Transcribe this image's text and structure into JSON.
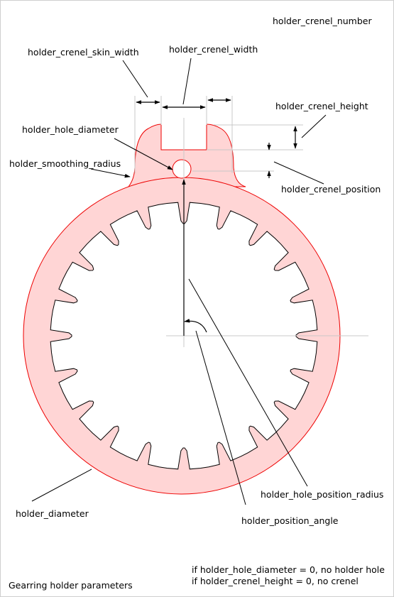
{
  "diagram": {
    "title": "Gearring holder parameters",
    "labels": {
      "holder_crenel_number": "holder_crenel_number",
      "holder_crenel_skin_width": "holder_crenel_skin_width",
      "holder_crenel_width": "holder_crenel_width",
      "holder_crenel_height": "holder_crenel_height",
      "holder_hole_diameter": "holder_hole_diameter",
      "holder_smoothing_radius": "holder_smoothing_radius",
      "holder_crenel_position": "holder_crenel_position",
      "holder_hole_position_radius": "holder_hole_position_radius",
      "holder_position_angle": "holder_position_angle",
      "holder_diameter": "holder_diameter"
    },
    "notes": [
      "if holder_hole_diameter = 0, no holder hole",
      "if holder_crenel_height = 0, no crenel"
    ],
    "gear": {
      "teeth": 20
    },
    "colors": {
      "holder_fill": "#ffd5d5",
      "holder_stroke": "#ee0000",
      "gear_stroke": "#000000",
      "axis": "#c8c8c8"
    }
  }
}
